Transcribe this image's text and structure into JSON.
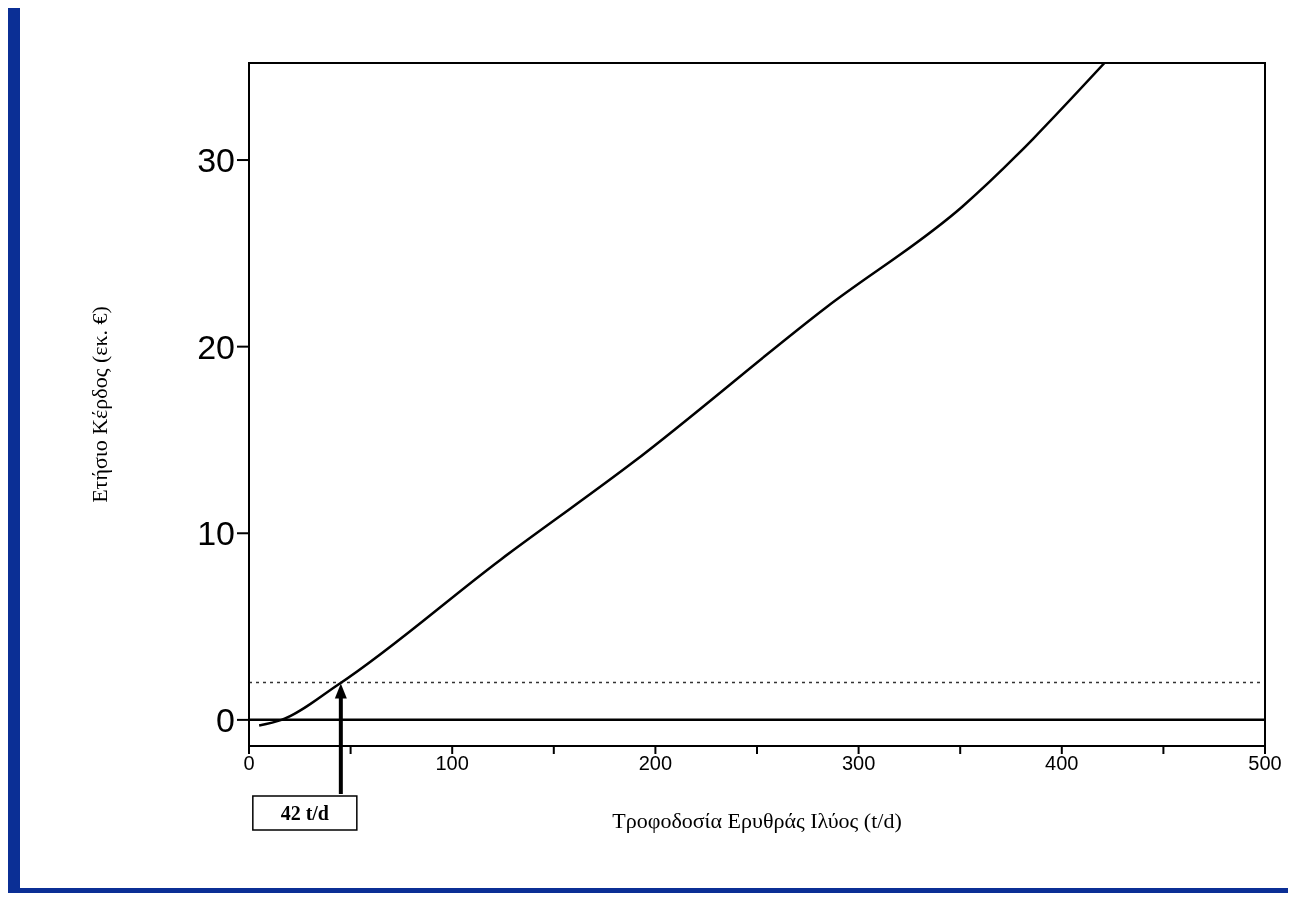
{
  "chart_data": {
    "type": "line",
    "xlabel": "Τροφοδοσία Ερυθράς Ιλύος (t/d)",
    "ylabel": "Ετήσιο Κέρδος (εκ. €)",
    "x": [
      5,
      16,
      44,
      124,
      189,
      284,
      351,
      421
    ],
    "series": [
      {
        "color": "#000000",
        "values": [
          -0.3,
          0,
          1.9,
          8.6,
          13.8,
          22.1,
          27.5,
          35.2
        ]
      }
    ],
    "xlim": [
      0,
      500
    ],
    "xticks": [
      0,
      {
        "value": 50,
        "label": null
      },
      100,
      {
        "value": 150,
        "label": null
      },
      200,
      {
        "value": 250,
        "label": null
      },
      300,
      {
        "value": 350,
        "label": null
      },
      400,
      {
        "value": 450,
        "label": null
      },
      500
    ],
    "ylim": [
      -1.4,
      35.2
    ],
    "yticks": [
      0,
      10,
      20,
      30
    ],
    "ref_lines": [
      {
        "axis": "y",
        "value": 0,
        "label": null,
        "color": "#000000",
        "line_style": "solid"
      },
      {
        "axis": "y",
        "value": 2,
        "label": null,
        "color": "#333333",
        "line_style": "dotted"
      }
    ],
    "annotations": [
      "42 t/d"
    ]
  }
}
